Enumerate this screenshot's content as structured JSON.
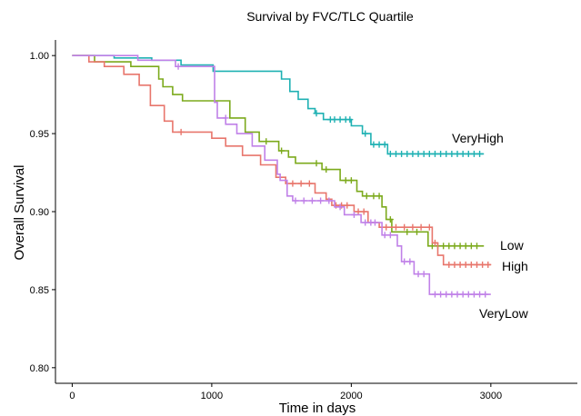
{
  "chart_data": {
    "type": "line",
    "title": "Survival by FVC/TLC Quartile",
    "xlabel": "Time in days",
    "ylabel": "Overall Survival",
    "xlim": [
      -120,
      3620
    ],
    "ylim": [
      0.79,
      1.01
    ],
    "xticks": [
      0,
      1000,
      2000,
      3000
    ],
    "yticks": [
      0.8,
      0.85,
      0.9,
      0.95,
      1.0
    ],
    "ytick_labels": [
      "0.80",
      "0.85",
      "0.90",
      "0.95",
      "1.00"
    ],
    "grid": false,
    "legend": "direct labels at line ends",
    "series": [
      {
        "name": "VeryHigh",
        "color": "#1fb1b3",
        "step": [
          [
            0,
            1.0
          ],
          [
            300,
            0.9985
          ],
          [
            570,
            0.997
          ],
          [
            780,
            0.994
          ],
          [
            1010,
            0.99
          ],
          [
            1500,
            0.985
          ],
          [
            1560,
            0.977
          ],
          [
            1620,
            0.972
          ],
          [
            1690,
            0.966
          ],
          [
            1740,
            0.963
          ],
          [
            1800,
            0.959
          ],
          [
            2000,
            0.955
          ],
          [
            2080,
            0.95
          ],
          [
            2140,
            0.943
          ],
          [
            2260,
            0.937
          ],
          [
            2950,
            0.937
          ]
        ],
        "censors": [
          [
            1750,
            0.963
          ],
          [
            1850,
            0.959
          ],
          [
            1880,
            0.959
          ],
          [
            1920,
            0.959
          ],
          [
            1960,
            0.959
          ],
          [
            1990,
            0.959
          ],
          [
            2100,
            0.95
          ],
          [
            2160,
            0.943
          ],
          [
            2200,
            0.943
          ],
          [
            2240,
            0.943
          ],
          [
            2280,
            0.937
          ],
          [
            2320,
            0.937
          ],
          [
            2360,
            0.937
          ],
          [
            2400,
            0.937
          ],
          [
            2440,
            0.937
          ],
          [
            2480,
            0.937
          ],
          [
            2520,
            0.937
          ],
          [
            2560,
            0.937
          ],
          [
            2600,
            0.937
          ],
          [
            2640,
            0.937
          ],
          [
            2680,
            0.937
          ],
          [
            2720,
            0.937
          ],
          [
            2760,
            0.937
          ],
          [
            2800,
            0.937
          ],
          [
            2840,
            0.937
          ],
          [
            2880,
            0.937
          ],
          [
            2920,
            0.937
          ]
        ]
      },
      {
        "name": "Low",
        "color": "#7caa1c",
        "step": [
          [
            0,
            1.0
          ],
          [
            160,
            0.996
          ],
          [
            420,
            0.993
          ],
          [
            620,
            0.985
          ],
          [
            650,
            0.98
          ],
          [
            720,
            0.975
          ],
          [
            790,
            0.971
          ],
          [
            1130,
            0.96
          ],
          [
            1240,
            0.951
          ],
          [
            1340,
            0.945
          ],
          [
            1480,
            0.939
          ],
          [
            1550,
            0.935
          ],
          [
            1600,
            0.931
          ],
          [
            1790,
            0.927
          ],
          [
            1920,
            0.92
          ],
          [
            2040,
            0.913
          ],
          [
            2080,
            0.91
          ],
          [
            2220,
            0.903
          ],
          [
            2250,
            0.895
          ],
          [
            2290,
            0.887
          ],
          [
            2550,
            0.878
          ],
          [
            2950,
            0.878
          ]
        ],
        "censors": [
          [
            1390,
            0.945
          ],
          [
            1500,
            0.939
          ],
          [
            1750,
            0.931
          ],
          [
            1820,
            0.927
          ],
          [
            1960,
            0.92
          ],
          [
            2000,
            0.92
          ],
          [
            2110,
            0.91
          ],
          [
            2160,
            0.91
          ],
          [
            2200,
            0.91
          ],
          [
            2280,
            0.895
          ],
          [
            2400,
            0.887
          ],
          [
            2470,
            0.887
          ],
          [
            2580,
            0.878
          ],
          [
            2620,
            0.878
          ],
          [
            2660,
            0.878
          ],
          [
            2700,
            0.878
          ],
          [
            2740,
            0.878
          ],
          [
            2780,
            0.878
          ],
          [
            2820,
            0.878
          ],
          [
            2860,
            0.878
          ],
          [
            2900,
            0.878
          ]
        ]
      },
      {
        "name": "High",
        "color": "#e8766c",
        "step": [
          [
            0,
            1.0
          ],
          [
            120,
            0.996
          ],
          [
            230,
            0.993
          ],
          [
            370,
            0.988
          ],
          [
            480,
            0.981
          ],
          [
            560,
            0.968
          ],
          [
            660,
            0.958
          ],
          [
            720,
            0.951
          ],
          [
            1000,
            0.947
          ],
          [
            1100,
            0.942
          ],
          [
            1220,
            0.936
          ],
          [
            1350,
            0.93
          ],
          [
            1460,
            0.922
          ],
          [
            1530,
            0.918
          ],
          [
            1740,
            0.912
          ],
          [
            1820,
            0.908
          ],
          [
            1860,
            0.904
          ],
          [
            2020,
            0.9
          ],
          [
            2120,
            0.893
          ],
          [
            2200,
            0.89
          ],
          [
            2580,
            0.88
          ],
          [
            2620,
            0.872
          ],
          [
            2660,
            0.866
          ],
          [
            3000,
            0.866
          ]
        ],
        "censors": [
          [
            780,
            0.951
          ],
          [
            1580,
            0.918
          ],
          [
            1640,
            0.918
          ],
          [
            1700,
            0.918
          ],
          [
            1890,
            0.904
          ],
          [
            1930,
            0.904
          ],
          [
            1970,
            0.904
          ],
          [
            2050,
            0.9
          ],
          [
            2090,
            0.9
          ],
          [
            2250,
            0.89
          ],
          [
            2320,
            0.89
          ],
          [
            2380,
            0.89
          ],
          [
            2440,
            0.89
          ],
          [
            2500,
            0.89
          ],
          [
            2560,
            0.89
          ],
          [
            2600,
            0.88
          ],
          [
            2700,
            0.866
          ],
          [
            2740,
            0.866
          ],
          [
            2780,
            0.866
          ],
          [
            2820,
            0.866
          ],
          [
            2860,
            0.866
          ],
          [
            2900,
            0.866
          ],
          [
            2940,
            0.866
          ],
          [
            2980,
            0.866
          ]
        ]
      },
      {
        "name": "VeryLow",
        "color": "#c081e8",
        "step": [
          [
            0,
            1.0
          ],
          [
            470,
            0.997
          ],
          [
            740,
            0.993
          ],
          [
            1020,
            0.97
          ],
          [
            1040,
            0.96
          ],
          [
            1100,
            0.956
          ],
          [
            1180,
            0.95
          ],
          [
            1290,
            0.942
          ],
          [
            1380,
            0.933
          ],
          [
            1470,
            0.924
          ],
          [
            1490,
            0.92
          ],
          [
            1540,
            0.91
          ],
          [
            1580,
            0.907
          ],
          [
            1880,
            0.903
          ],
          [
            1950,
            0.898
          ],
          [
            2070,
            0.893
          ],
          [
            2220,
            0.885
          ],
          [
            2330,
            0.878
          ],
          [
            2360,
            0.868
          ],
          [
            2450,
            0.86
          ],
          [
            2560,
            0.847
          ],
          [
            3000,
            0.847
          ]
        ],
        "censors": [
          [
            760,
            0.993
          ],
          [
            1100,
            0.96
          ],
          [
            1600,
            0.907
          ],
          [
            1660,
            0.907
          ],
          [
            1720,
            0.907
          ],
          [
            1780,
            0.907
          ],
          [
            1840,
            0.907
          ],
          [
            1920,
            0.903
          ],
          [
            2020,
            0.898
          ],
          [
            2100,
            0.893
          ],
          [
            2140,
            0.893
          ],
          [
            2170,
            0.893
          ],
          [
            2240,
            0.885
          ],
          [
            2280,
            0.885
          ],
          [
            2380,
            0.868
          ],
          [
            2420,
            0.868
          ],
          [
            2480,
            0.86
          ],
          [
            2520,
            0.86
          ],
          [
            2600,
            0.847
          ],
          [
            2640,
            0.847
          ],
          [
            2680,
            0.847
          ],
          [
            2720,
            0.847
          ],
          [
            2760,
            0.847
          ],
          [
            2800,
            0.847
          ],
          [
            2840,
            0.847
          ],
          [
            2880,
            0.847
          ],
          [
            2920,
            0.847
          ],
          [
            2960,
            0.847
          ]
        ]
      }
    ]
  }
}
